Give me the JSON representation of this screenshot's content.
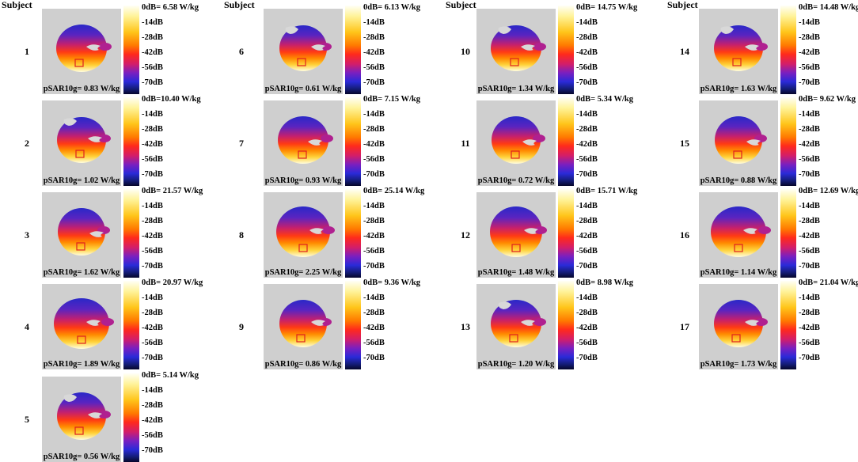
{
  "header_label": "Subject",
  "scale_ticks": [
    "-14dB",
    "-28dB",
    "-42dB",
    "-56dB",
    "-70dB"
  ],
  "columns": [
    {
      "subjects": [
        {
          "num": "1",
          "max": "0dB= 6.58 W/kg",
          "psar": "pSAR10g= 0.83 W/kg"
        },
        {
          "num": "2",
          "max": "0dB=10.40 W/kg",
          "psar": "pSAR10g= 1.02 W/kg"
        },
        {
          "num": "3",
          "max": "0dB= 21.57 W/kg",
          "psar": "pSAR10g= 1.62 W/kg"
        },
        {
          "num": "4",
          "max": "0dB= 20.97 W/kg",
          "psar": "pSAR10g= 1.89 W/kg"
        },
        {
          "num": "5",
          "max": "0dB=  5.14 W/kg",
          "psar": "pSAR10g= 0.56 W/kg"
        }
      ]
    },
    {
      "subjects": [
        {
          "num": "6",
          "max": "0dB=  6.13 W/kg",
          "psar": "pSAR10g= 0.61 W/kg"
        },
        {
          "num": "7",
          "max": "0dB=  7.15 W/kg",
          "psar": "pSAR10g= 0.93 W/kg"
        },
        {
          "num": "8",
          "max": "0dB= 25.14 W/kg",
          "psar": "pSAR10g= 2.25 W/kg"
        },
        {
          "num": "9",
          "max": "0dB= 9.36 W/kg",
          "psar": "pSAR10g= 0.86 W/kg"
        }
      ]
    },
    {
      "subjects": [
        {
          "num": "10",
          "max": "0dB= 14.75 W/kg",
          "psar": "pSAR10g= 1.34 W/kg"
        },
        {
          "num": "11",
          "max": "0dB=  5.34 W/kg",
          "psar": "pSAR10g= 0.72 W/kg"
        },
        {
          "num": "12",
          "max": "0dB= 15.71 W/kg",
          "psar": "pSAR10g= 1.48 W/kg"
        },
        {
          "num": "13",
          "max": "0dB=  8.98 W/kg",
          "psar": "pSAR10g= 1.20 W/kg"
        }
      ]
    },
    {
      "subjects": [
        {
          "num": "14",
          "max": "0dB= 14.48 W/kg",
          "psar": "pSAR10g= 1.63 W/kg"
        },
        {
          "num": "15",
          "max": "0dB=  9.62  W/kg",
          "psar": "pSAR10g= 0.88 W/kg"
        },
        {
          "num": "16",
          "max": "0dB= 12.69 W/kg",
          "psar": "pSAR10g= 1.14 W/kg"
        },
        {
          "num": "17",
          "max": "0dB= 21.04 W/kg",
          "psar": "pSAR10g= 1.73 W/kg"
        }
      ]
    }
  ]
}
